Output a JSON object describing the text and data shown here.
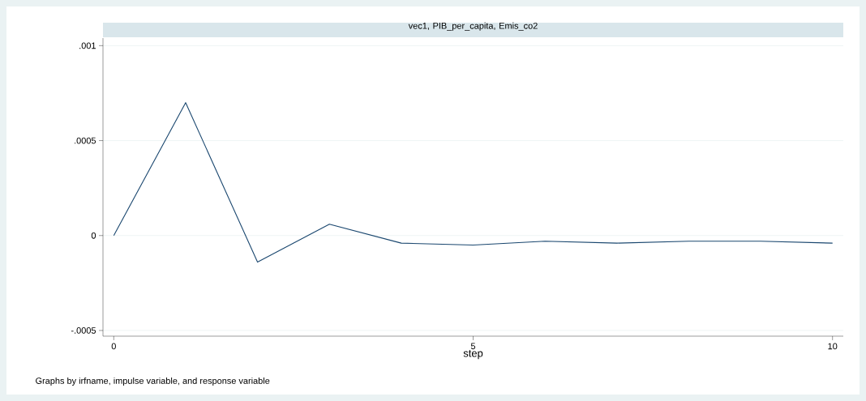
{
  "chart_data": {
    "type": "line",
    "title": "vec1, PIB_per_capita, Emis_co2",
    "xlabel": "step",
    "annotations": [
      "Graphs by irfname, impulse variable, and response variable"
    ],
    "x": [
      0,
      1,
      2,
      3,
      4,
      5,
      6,
      7,
      8,
      9,
      10
    ],
    "series": [
      {
        "color": "#1a476f",
        "values": [
          0,
          0.0007,
          -0.00014,
          6e-05,
          -4e-05,
          -5e-05,
          -3e-05,
          -4e-05,
          -3e-05,
          -3e-05,
          -4e-05
        ]
      }
    ],
    "xlim": [
      -0.15,
      10.15
    ],
    "ylim": [
      -0.00053,
      0.00104
    ],
    "xticks": [
      0,
      5,
      10
    ],
    "yticks": [
      {
        "value": -0.0005,
        "label": "-.0005"
      },
      {
        "value": 0,
        "label": "0"
      },
      {
        "value": 0.0005,
        "label": ".0005"
      },
      {
        "value": 0.001,
        "label": ".001"
      }
    ],
    "grid": "y",
    "marker": "none",
    "line_style": "solid"
  }
}
